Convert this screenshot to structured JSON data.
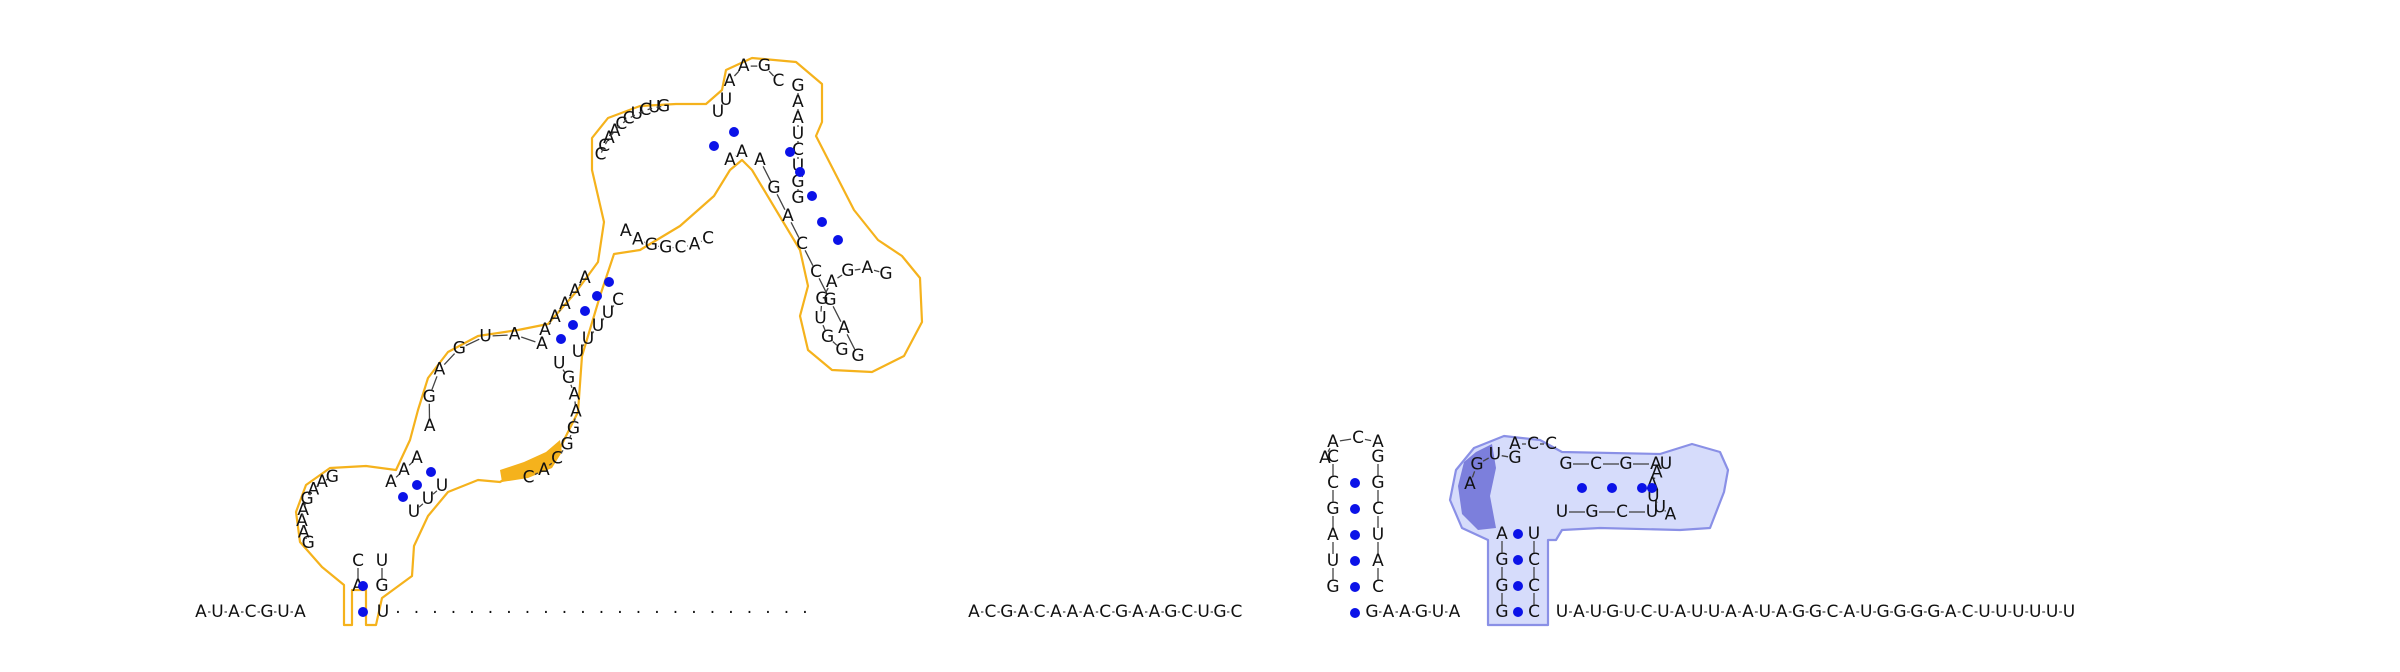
{
  "colors": {
    "background": "#ffffff",
    "nucleotide_text": "#111111",
    "pair_dot": "#0b12e8",
    "backbone_dash": "#444444",
    "outline_orange": "#f5b21c",
    "highlight_orange": "#f5b21c",
    "outline_blue": "#8a90e6",
    "fill_blue": "#d6dcfb",
    "highlight_purple": "#7c7fdc"
  },
  "sequence": {
    "left_segment": "AUACGUA",
    "junction_left": "U",
    "gap_dots": ".......................",
    "middle_segment": "ACGACAAACGAAGCUGC",
    "hairpin_base_5": "GAAGUA",
    "hairpin_base_3": "UAUGUCUAUUAAUAGGCAUGGGGACUUUUUU"
  },
  "orange_structure": {
    "stem1_left": "AC",
    "stem1_right": "GU",
    "loop1": "GAAAGAAG",
    "stem2_left": "AAA",
    "stem2_right": "UUU",
    "internal_loop_top": "AGAGUAA",
    "internal_loop_bottom": "CACGGAAGU",
    "stem3_left": "AAAAA",
    "stem3_right": "UUUUC",
    "bulge_top": "CCAACCUCUG",
    "bulge_bottom": "AAGGCAC",
    "stem4_left": "UU",
    "stem4_right": "AA",
    "loop4_top": "AAGC",
    "stem5_left": "GAAUCUGG",
    "stem5_right": "AGACCGAG",
    "loop5": "GAGAGUGG"
  },
  "middle_hairpin": {
    "left_strand": "GUAGCC",
    "loop": "AACA",
    "right_strand": "CAUCGG"
  },
  "blue_structure": {
    "loop_highlight": "AGUG",
    "loop_rest": "ACC",
    "stem_top": "GCGA",
    "hairpin_loop": "UAAUUA",
    "stem_bottom": "UGCU",
    "vertical_left": "GGGA",
    "vertical_right": "CCCU"
  }
}
